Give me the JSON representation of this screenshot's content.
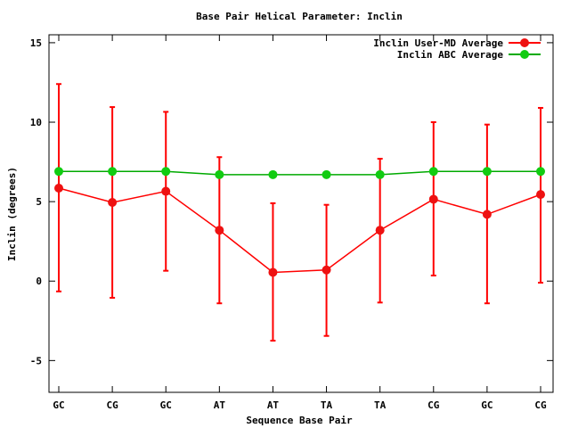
{
  "chart_data": {
    "type": "line",
    "title": "Base Pair Helical Parameter: Inclin",
    "xlabel": "Sequence Base Pair",
    "ylabel": "Inclin (degrees)",
    "categories": [
      "GC",
      "CG",
      "GC",
      "AT",
      "AT",
      "TA",
      "TA",
      "CG",
      "GC",
      "CG"
    ],
    "ylim": [
      -7,
      15.5
    ],
    "yticks": [
      -5,
      0,
      5,
      10,
      15
    ],
    "legend_position": "top-right",
    "series": [
      {
        "name": "Inclin User-MD Average",
        "color": "#ff0000",
        "marker_color": "#ee1111",
        "values": [
          5.85,
          4.95,
          5.65,
          3.2,
          0.55,
          0.7,
          3.2,
          5.15,
          4.2,
          5.45
        ],
        "error_low": [
          -0.65,
          -1.05,
          0.65,
          -1.4,
          -3.75,
          -3.45,
          -1.35,
          0.35,
          -1.4,
          -0.1
        ],
        "error_high": [
          12.4,
          10.95,
          10.65,
          7.8,
          4.9,
          4.8,
          7.7,
          10.0,
          9.85,
          10.9
        ]
      },
      {
        "name": "Inclin ABC Average",
        "color": "#00aa00",
        "marker_color": "#11cc11",
        "values": [
          6.9,
          6.9,
          6.9,
          6.7,
          6.7,
          6.7,
          6.7,
          6.9,
          6.9,
          6.9
        ]
      }
    ]
  }
}
